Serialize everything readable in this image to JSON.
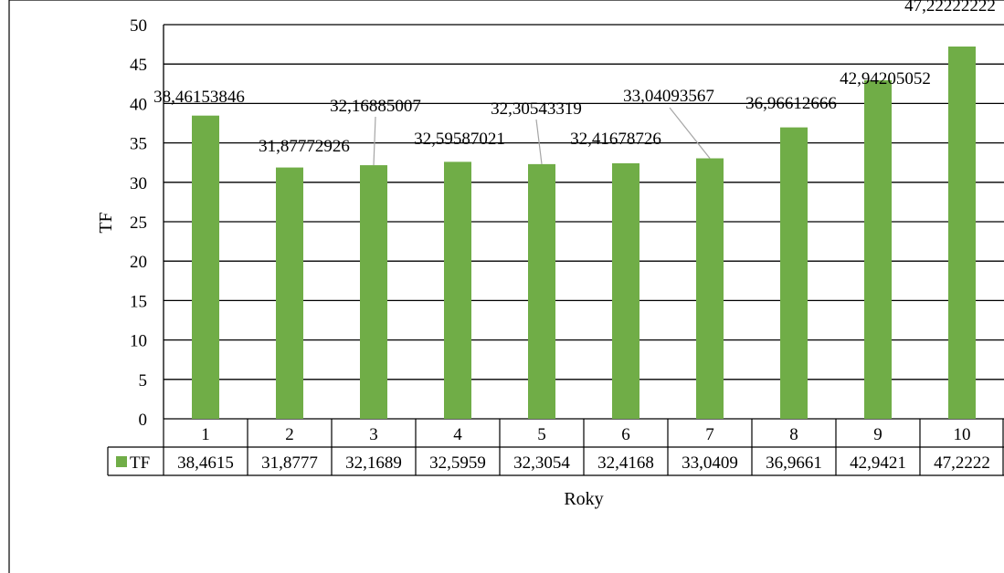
{
  "chart_data": {
    "type": "bar",
    "title": "",
    "xlabel": "Roky",
    "ylabel": "TF",
    "ylim": [
      0,
      50
    ],
    "y_ticks": [
      "0",
      "5",
      "10",
      "15",
      "20",
      "25",
      "30",
      "35",
      "40",
      "45",
      "50"
    ],
    "grid": true,
    "categories": [
      "1",
      "2",
      "3",
      "4",
      "5",
      "6",
      "7",
      "8",
      "9",
      "10"
    ],
    "series": [
      {
        "name": "TF",
        "values": [
          38.46153846,
          31.87772926,
          32.16885007,
          32.59587021,
          32.30543319,
          32.41678726,
          33.04093567,
          36.96612666,
          42.94205052,
          47.22222222
        ],
        "data_labels": [
          "38,46153846",
          "31,87772926",
          "32,16885007",
          "32,59587021",
          "32,30543319",
          "32,41678726",
          "33,04093567",
          "36,96612666",
          "42,94205052",
          "47,22222222"
        ],
        "table_values": [
          "38,4615",
          "31,8777",
          "32,1689",
          "32,5959",
          "32,3054",
          "32,4168",
          "33,0409",
          "36,9661",
          "42,9421",
          "47,2222"
        ]
      }
    ],
    "data_table": true,
    "bar_color": "#70ad47"
  }
}
